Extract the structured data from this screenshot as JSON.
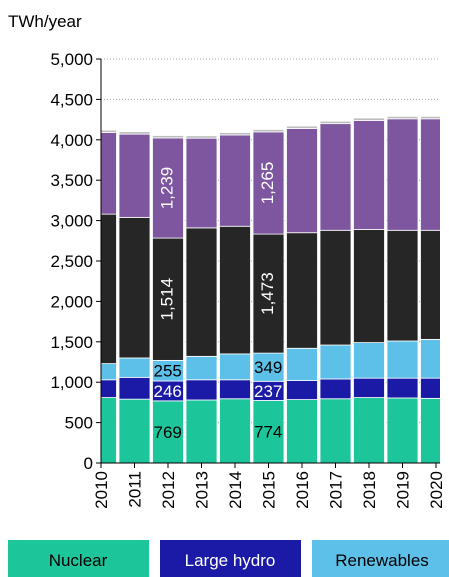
{
  "chart_data": {
    "type": "stacked-bar",
    "y_label": "TWh/year",
    "categories": [
      "2010",
      "2011",
      "2012",
      "2013",
      "2014",
      "2015",
      "2016",
      "2017",
      "2018",
      "2019",
      "2020"
    ],
    "series": [
      {
        "name": "Nuclear",
        "color": "#1dc59a",
        "label_color": "#000000",
        "values": [
          810,
          790,
          769,
          780,
          795,
          774,
          785,
          795,
          810,
          805,
          800
        ],
        "value_labels": [
          null,
          null,
          "769",
          null,
          null,
          "774",
          null,
          null,
          null,
          null,
          null
        ]
      },
      {
        "name": "Large hydro",
        "color": "#1a1aa6",
        "label_color": "#ffffff",
        "values": [
          220,
          270,
          246,
          250,
          235,
          237,
          235,
          245,
          240,
          245,
          250
        ],
        "value_labels": [
          null,
          null,
          "246",
          null,
          null,
          "237",
          null,
          null,
          null,
          null,
          null
        ]
      },
      {
        "name": "Renewables",
        "color": "#5cc0e8",
        "label_color": "#000000",
        "values": [
          200,
          240,
          255,
          290,
          320,
          349,
          400,
          420,
          440,
          460,
          480
        ],
        "value_labels": [
          null,
          null,
          "255",
          null,
          null,
          "349",
          null,
          null,
          null,
          null,
          null
        ]
      },
      {
        "color": "#262626",
        "label_color": "#ffffff",
        "rotate_labels": true,
        "values": [
          1850,
          1740,
          1514,
          1590,
          1580,
          1473,
          1430,
          1420,
          1400,
          1370,
          1350
        ],
        "value_labels": [
          null,
          null,
          "1,514",
          null,
          null,
          "1,473",
          null,
          null,
          null,
          null,
          null
        ]
      },
      {
        "color": "#7e56a0",
        "label_color": "#ffffff",
        "rotate_labels": true,
        "values": [
          1010,
          1030,
          1239,
          1110,
          1130,
          1265,
          1290,
          1320,
          1350,
          1380,
          1380
        ],
        "value_labels": [
          null,
          null,
          "1,239",
          null,
          null,
          "1,265",
          null,
          null,
          null,
          null,
          null
        ]
      },
      {
        "color": "#bdbdbd",
        "values": [
          30,
          30,
          30,
          30,
          30,
          30,
          30,
          30,
          30,
          30,
          30
        ]
      }
    ],
    "ylim": [
      0,
      5000
    ],
    "yticks": [
      0,
      500,
      {
        "value": 1000,
        "label": "1,000"
      },
      {
        "value": 1500,
        "label": "1,500"
      },
      {
        "value": 2000,
        "label": "2,000"
      },
      {
        "value": 2500,
        "label": "2,500"
      },
      {
        "value": 3000,
        "label": "3,000"
      },
      {
        "value": 3500,
        "label": "3,500"
      },
      {
        "value": 4000,
        "label": "4,000"
      },
      {
        "value": 4500,
        "label": "4,500"
      },
      {
        "value": 5000,
        "label": "5,000"
      }
    ],
    "grid": true
  }
}
